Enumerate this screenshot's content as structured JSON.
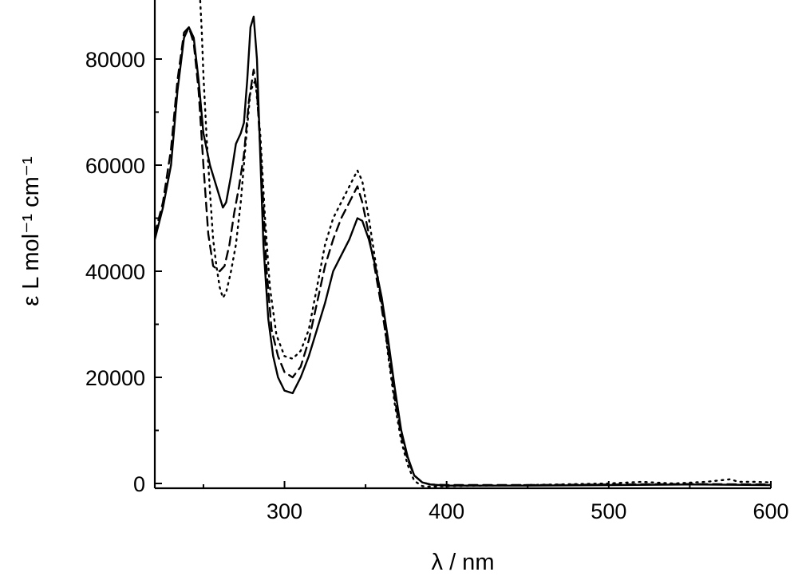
{
  "chart_data": {
    "type": "line",
    "xlabel": "λ / nm",
    "ylabel": "ε L mol⁻¹ cm⁻¹",
    "xlim": [
      220,
      600
    ],
    "ylim": [
      -1000,
      90000
    ],
    "xticks": [
      300,
      400,
      500,
      600
    ],
    "xminor": [
      250,
      350,
      450,
      550
    ],
    "yticks": [
      0,
      20000,
      40000,
      60000,
      80000
    ],
    "yminor": [
      10000,
      30000,
      50000,
      70000
    ],
    "grid": false,
    "legend": "none",
    "series": [
      {
        "style": "solid",
        "x": [
          220,
          225,
          230,
          234,
          238,
          241,
          244,
          247,
          250,
          254,
          258,
          262,
          264,
          267,
          270,
          273,
          275,
          277,
          279,
          281,
          283,
          285,
          287,
          290,
          293,
          296,
          300,
          305,
          310,
          315,
          320,
          325,
          330,
          335,
          340,
          345,
          348,
          352,
          356,
          360,
          364,
          368,
          372,
          376,
          380,
          385,
          390,
          400,
          450,
          500,
          550,
          600
        ],
        "y": [
          46000,
          52000,
          60000,
          74000,
          84000,
          86000,
          84000,
          76000,
          66000,
          60000,
          56000,
          52000,
          53000,
          58000,
          64000,
          66000,
          68000,
          76000,
          86000,
          88000,
          80000,
          62000,
          45000,
          31000,
          24000,
          20000,
          17500,
          17000,
          20000,
          24000,
          29000,
          34000,
          40000,
          43000,
          46000,
          50000,
          49500,
          46000,
          41000,
          35000,
          27000,
          18000,
          10000,
          5000,
          1500,
          200,
          -200,
          -400,
          -400,
          -300,
          -200,
          -300
        ]
      },
      {
        "style": "dashed",
        "x": [
          220,
          225,
          230,
          234,
          238,
          241,
          244,
          247,
          250,
          253,
          256,
          260,
          263,
          266,
          269,
          272,
          275,
          278,
          281,
          283,
          286,
          289,
          292,
          296,
          300,
          305,
          310,
          315,
          320,
          325,
          330,
          335,
          340,
          345,
          348,
          352,
          356,
          360,
          364,
          368,
          372,
          376,
          380,
          385,
          390,
          400,
          450,
          500,
          550,
          600
        ],
        "y": [
          47000,
          53000,
          63000,
          76000,
          85000,
          86000,
          83000,
          74000,
          60000,
          47000,
          41000,
          40000,
          41000,
          45000,
          51000,
          56000,
          62000,
          72000,
          78000,
          74000,
          58000,
          40000,
          29000,
          24000,
          21000,
          20000,
          22000,
          27000,
          34000,
          41000,
          46000,
          50000,
          53000,
          56000,
          53000,
          47000,
          40000,
          33000,
          25000,
          16000,
          9000,
          4500,
          1500,
          200,
          -200,
          -300,
          -300,
          -200,
          -100,
          -200
        ]
      },
      {
        "style": "dotted",
        "x": [
          248,
          249,
          250,
          252,
          254,
          256,
          258,
          260,
          262,
          264,
          267,
          270,
          273,
          276,
          279,
          282,
          285,
          288,
          291,
          295,
          300,
          305,
          310,
          315,
          320,
          325,
          330,
          335,
          340,
          345,
          348,
          352,
          356,
          360,
          364,
          368,
          372,
          376,
          380,
          385,
          390,
          400,
          450,
          500,
          520,
          540,
          560,
          575,
          580,
          590,
          600
        ],
        "y": [
          91000,
          85000,
          77000,
          65000,
          55000,
          46000,
          41000,
          37000,
          35000,
          36000,
          40000,
          45000,
          53000,
          64000,
          74000,
          76000,
          66000,
          50000,
          37000,
          28000,
          24000,
          23500,
          25000,
          29000,
          37000,
          45000,
          50000,
          53000,
          56000,
          59000,
          57000,
          50000,
          42000,
          34000,
          24000,
          15000,
          8000,
          3500,
          500,
          -500,
          -600,
          -500,
          -300,
          0,
          300,
          0,
          300,
          800,
          300,
          300,
          200
        ]
      }
    ]
  }
}
